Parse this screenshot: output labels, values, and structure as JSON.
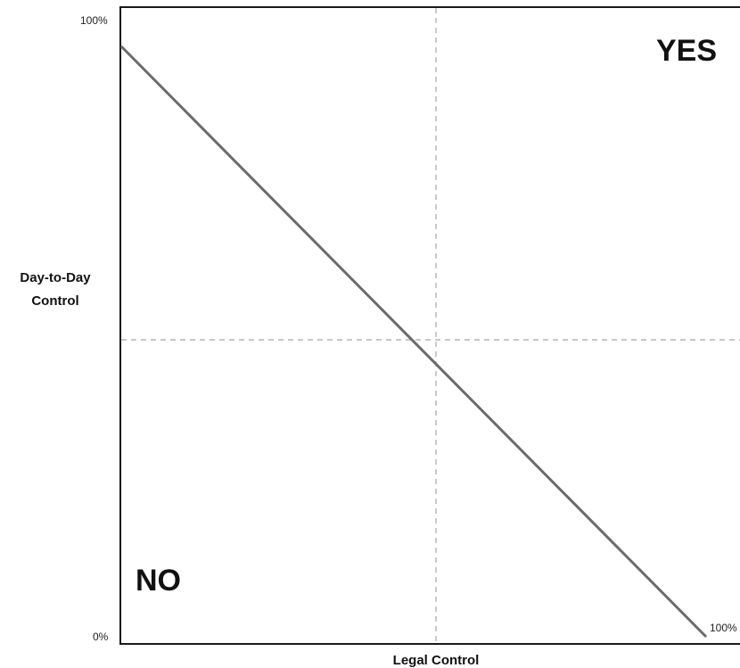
{
  "diagram": {
    "y_axis": {
      "label_line1": "Day-to-Day",
      "label_line2": "Control",
      "top_tick": "100%",
      "bottom_tick": "0%"
    },
    "x_axis": {
      "label": "Legal Control",
      "right_tick": "100%"
    },
    "regions": {
      "upper_right": "YES",
      "lower_left": "NO"
    },
    "colors": {
      "frame": "#1a1a1a",
      "diagonal_line": "#6b6b6b",
      "dashed_guides": "#a8a8a8"
    }
  }
}
